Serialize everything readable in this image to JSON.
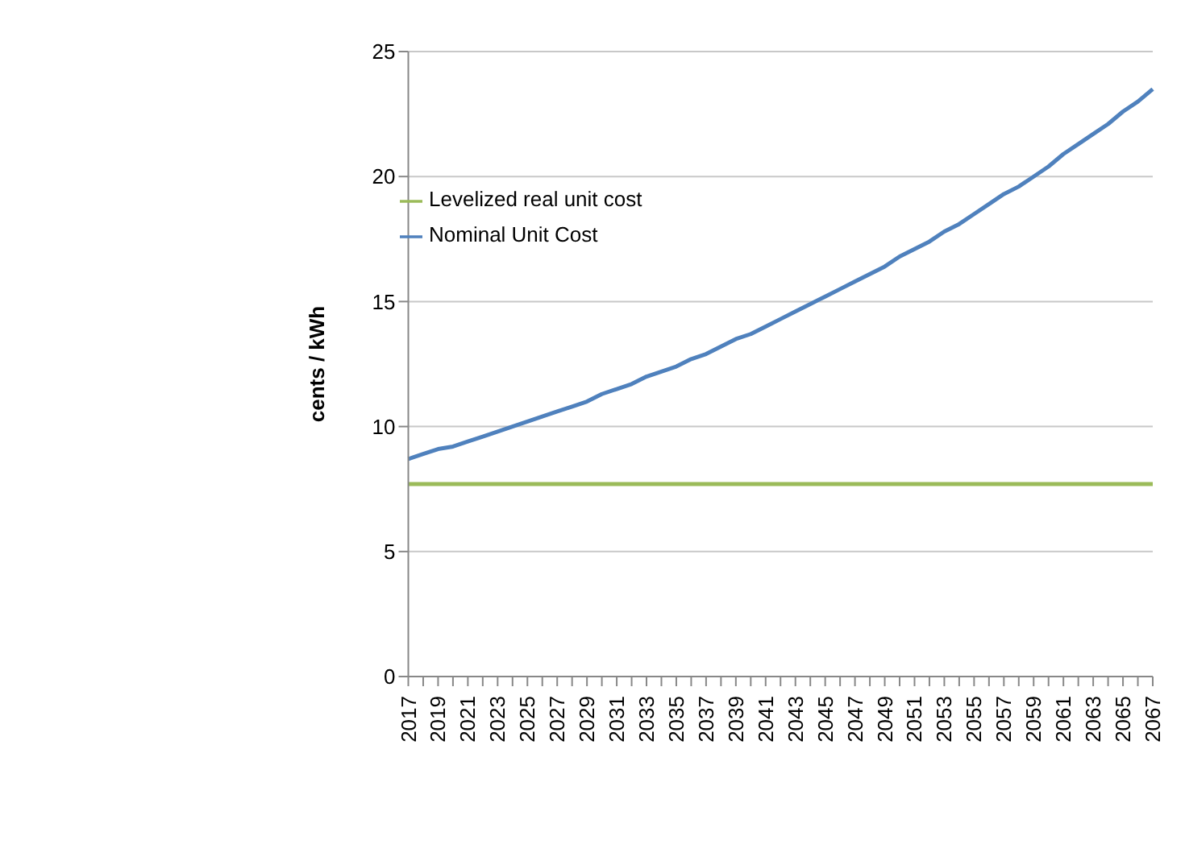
{
  "chart_data": {
    "type": "line",
    "ylabel": "cents / kWh",
    "categories": [
      "2017",
      null,
      "2019",
      null,
      "2021",
      null,
      "2023",
      null,
      "2025",
      null,
      "2027",
      null,
      "2029",
      null,
      "2031",
      null,
      "2033",
      null,
      "2035",
      null,
      "2037",
      null,
      "2039",
      null,
      "2041",
      null,
      "2043",
      null,
      "2045",
      null,
      "2047",
      null,
      "2049",
      null,
      "2051",
      null,
      "2053",
      null,
      "2055",
      null,
      "2057",
      null,
      "2059",
      null,
      "2061",
      null,
      "2063",
      null,
      "2065",
      null,
      "2067"
    ],
    "series": [
      {
        "name": "Levelized real unit cost",
        "color": "#9bbb59",
        "values": [
          7.7,
          7.7,
          7.7,
          7.7,
          7.7,
          7.7,
          7.7,
          7.7,
          7.7,
          7.7,
          7.7,
          7.7,
          7.7,
          7.7,
          7.7,
          7.7,
          7.7,
          7.7,
          7.7,
          7.7,
          7.7,
          7.7,
          7.7,
          7.7,
          7.7,
          7.7,
          7.7,
          7.7,
          7.7,
          7.7,
          7.7,
          7.7,
          7.7,
          7.7,
          7.7,
          7.7,
          7.7,
          7.7,
          7.7,
          7.7,
          7.7,
          7.7,
          7.7,
          7.7,
          7.7,
          7.7,
          7.7,
          7.7,
          7.7,
          7.7,
          7.7
        ]
      },
      {
        "name": "Nominal Unit Cost",
        "color": "#4f81bd",
        "values": [
          8.7,
          8.9,
          9.1,
          9.2,
          9.4,
          9.6,
          9.8,
          10.0,
          10.2,
          10.4,
          10.6,
          10.8,
          11.0,
          11.3,
          11.5,
          11.7,
          12.0,
          12.2,
          12.4,
          12.7,
          12.9,
          13.2,
          13.5,
          13.7,
          14.0,
          14.3,
          14.6,
          14.9,
          15.2,
          15.5,
          15.8,
          16.1,
          16.4,
          16.8,
          17.1,
          17.4,
          17.8,
          18.1,
          18.5,
          18.9,
          19.3,
          19.6,
          20.0,
          20.4,
          20.9,
          21.3,
          21.7,
          22.1,
          22.6,
          23.0,
          23.5
        ]
      }
    ],
    "ylim": [
      0,
      25
    ],
    "yticks": [
      0,
      5,
      10,
      15,
      20,
      25
    ],
    "grid": "y",
    "legend": "top left",
    "marker": "none",
    "line_style": "solid"
  }
}
